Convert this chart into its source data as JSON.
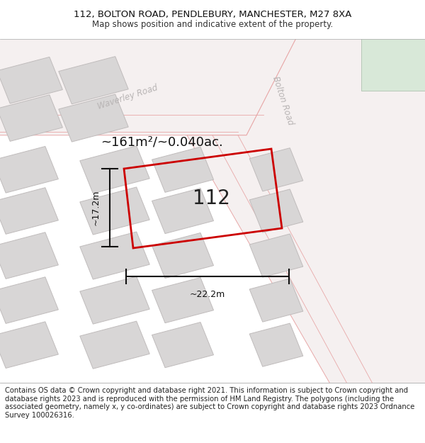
{
  "title_line1": "112, BOLTON ROAD, PENDLEBURY, MANCHESTER, M27 8XA",
  "title_line2": "Map shows position and indicative extent of the property.",
  "footer_text": "Contains OS data © Crown copyright and database right 2021. This information is subject to Crown copyright and database rights 2023 and is reproduced with the permission of HM Land Registry. The polygons (including the associated geometry, namely x, y co-ordinates) are subject to Crown copyright and database rights 2023 Ordnance Survey 100026316.",
  "area_text": "~161m²/~0.040ac.",
  "label_112": "112",
  "dim_width": "~22.2m",
  "dim_height": "~17.2m",
  "road_waverley": "Waverley Road",
  "road_bolton": "Bolton Road",
  "map_bg": "#eeecec",
  "plot_outline_color": "#cc0000",
  "building_fill": "#d8d6d6",
  "building_edge": "#c0bcbc",
  "road_fill": "#f5f0f0",
  "road_edge": "#e8a8a8",
  "road_text_color": "#b8b4b4",
  "green_fill": "#d8e8d8",
  "green_edge": "#b8c8b8",
  "dim_line_color": "#111111",
  "title_fontsize": 9.5,
  "subtitle_fontsize": 8.5,
  "footer_fontsize": 7.2
}
